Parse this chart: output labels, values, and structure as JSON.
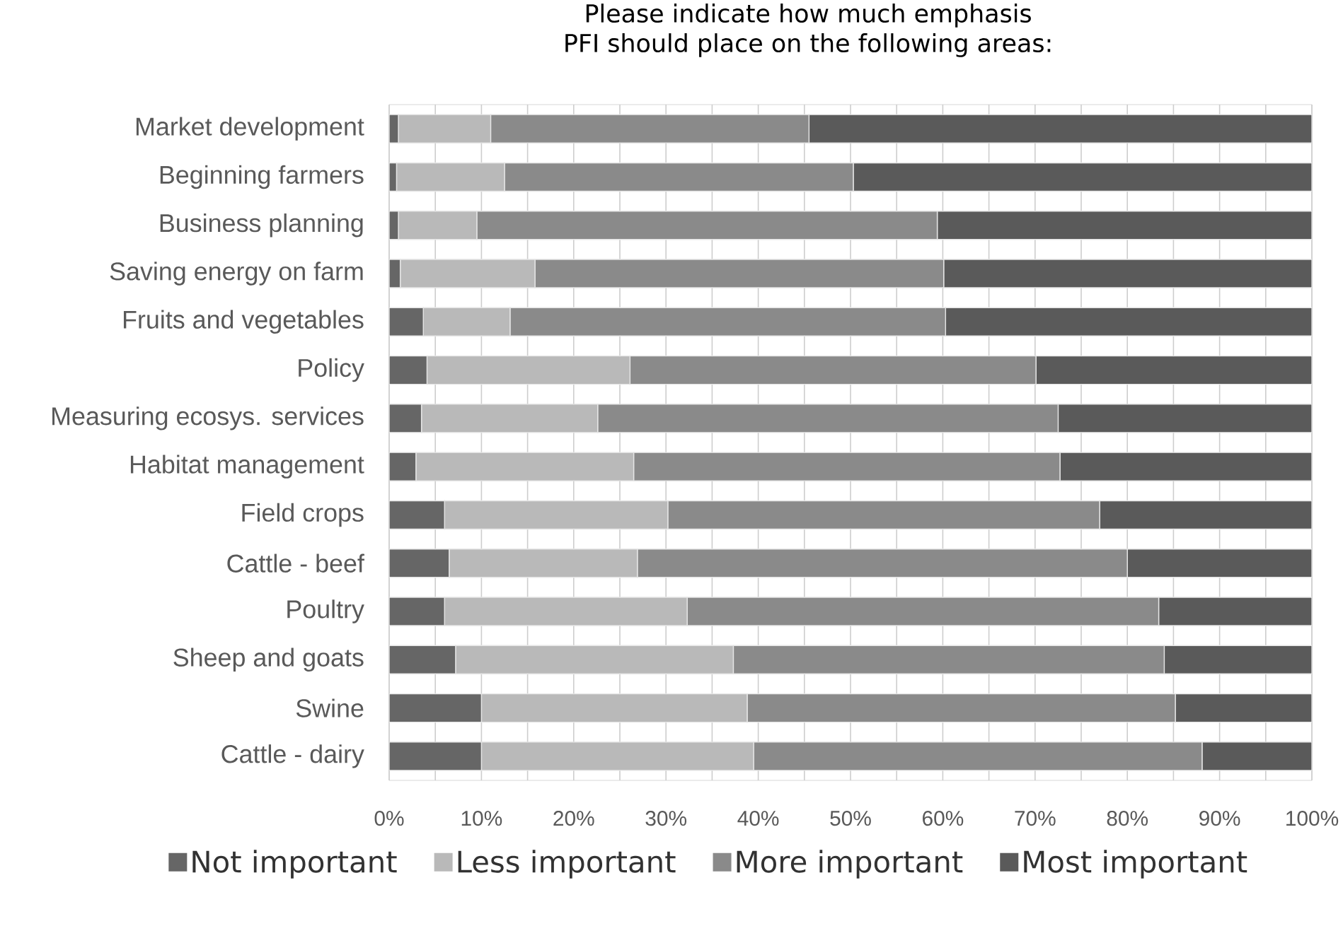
{
  "chart_data": {
    "type": "bar",
    "orientation": "horizontal",
    "stacked": true,
    "title": "Please indicate how much emphasis",
    "subtitle": "PFI should place on the following areas:",
    "categories": [
      "Market development",
      "Beginning farmers",
      "Business planning",
      "Saving energy on farm",
      "Fruits and vegetables",
      "Policy",
      "Measuring ecosys. services",
      "Habitat management",
      "Field crops",
      "Cattle - beef",
      "Poultry",
      "Sheep and goats",
      "Swine",
      "Cattle - dairy"
    ],
    "series": [
      {
        "name": "Not important",
        "color": "#666666",
        "values": [
          1.0,
          0.8,
          1.0,
          1.2,
          3.7,
          4.1,
          3.5,
          2.9,
          6.0,
          6.5,
          6.0,
          7.2,
          10.0,
          10.0
        ]
      },
      {
        "name": "Less important",
        "color": "#b9b9b9",
        "values": [
          10.0,
          11.7,
          8.5,
          14.6,
          9.4,
          22.0,
          19.1,
          23.6,
          24.2,
          20.4,
          26.3,
          30.1,
          28.8,
          29.5
        ]
      },
      {
        "name": "More important",
        "color": "#8a8a8a",
        "values": [
          34.5,
          37.8,
          49.9,
          44.3,
          47.2,
          44.0,
          49.9,
          46.2,
          46.8,
          53.1,
          51.1,
          46.7,
          46.4,
          48.6
        ]
      },
      {
        "name": "Most important",
        "color": "#5a5a5a",
        "values": [
          54.5,
          49.7,
          40.6,
          39.9,
          39.7,
          29.9,
          27.5,
          27.3,
          23.0,
          20.0,
          16.6,
          16.0,
          14.8,
          11.9
        ]
      }
    ],
    "xlim": [
      0,
      100
    ],
    "xticks": [
      {
        "value": 0,
        "label": "0%"
      },
      {
        "value": 5,
        "label": null
      },
      {
        "value": 10,
        "label": "10%"
      },
      {
        "value": 15,
        "label": null
      },
      {
        "value": 20,
        "label": "20%"
      },
      {
        "value": 25,
        "label": null
      },
      {
        "value": 30,
        "label": "30%"
      },
      {
        "value": 35,
        "label": null
      },
      {
        "value": 40,
        "label": "40%"
      },
      {
        "value": 45,
        "label": null
      },
      {
        "value": 50,
        "label": "50%"
      },
      {
        "value": 55,
        "label": null
      },
      {
        "value": 60,
        "label": "60%"
      },
      {
        "value": 65,
        "label": null
      },
      {
        "value": 70,
        "label": "70%"
      },
      {
        "value": 75,
        "label": null
      },
      {
        "value": 80,
        "label": "80%"
      },
      {
        "value": 85,
        "label": null
      },
      {
        "value": 90,
        "label": "90%"
      },
      {
        "value": 95,
        "label": null
      },
      {
        "value": 100,
        "label": "100%"
      }
    ],
    "grid": "x",
    "legend": "bottom"
  }
}
